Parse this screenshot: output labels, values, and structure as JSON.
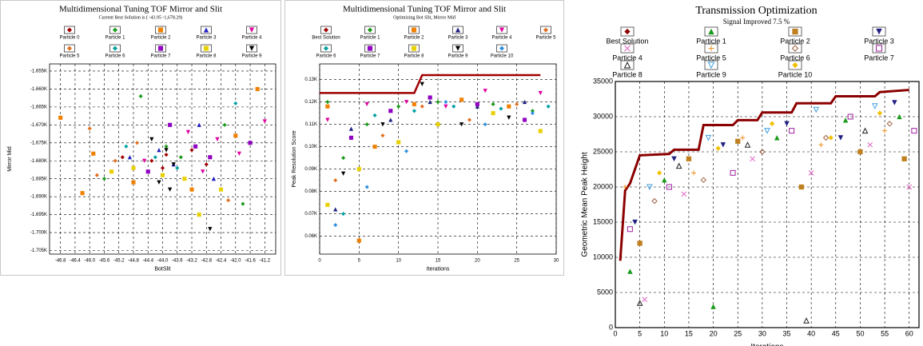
{
  "chart_data": [
    {
      "type": "scatter",
      "title": "Multidimensional Tuning TOF Mirror and Slit",
      "subtitle": "Current Best Solution is ( -43.95 -1,678.29)",
      "x_label": "BotSlit",
      "y_label": "Mirror Mid",
      "xlim": [
        -47.1,
        -40.9
      ],
      "xticks": [
        -46.8,
        -46.4,
        {
          "value": -46,
          "label": "-46.0"
        },
        -45.6,
        -45.2,
        -44.8,
        -44.4,
        {
          "value": -44,
          "label": "-44.0"
        },
        -43.6,
        -43.2,
        -42.8,
        -42.4,
        {
          "value": -42,
          "label": "-42.0"
        },
        -41.6,
        -41.2
      ],
      "ylim": [
        -1.706,
        -1.653
      ],
      "yticks": [
        {
          "value": -1.655,
          "label": "-1.655K"
        },
        {
          "value": -1.66,
          "label": "-1.660K"
        },
        {
          "value": -1.665,
          "label": "-1.665K"
        },
        {
          "value": -1.67,
          "label": "-1.670K"
        },
        {
          "value": -1.675,
          "label": "-1.675K"
        },
        {
          "value": -1.68,
          "label": "-1.680K"
        },
        {
          "value": -1.685,
          "label": "-1.685K"
        },
        {
          "value": -1.69,
          "label": "-1.690K"
        },
        {
          "value": -1.695,
          "label": "-1.695K"
        },
        {
          "value": -1.7,
          "label": "-1.700K"
        },
        {
          "value": -1.705,
          "label": "-1.705K"
        }
      ],
      "grid": true,
      "series": [
        {
          "name": "Particle 0",
          "color": "#a00000",
          "marker": "diamond",
          "filled": true,
          "x": [
            -43.9,
            -44.3,
            -43.2,
            -45.1,
            -42.8,
            -44.0
          ],
          "values": [
            -1.6783,
            -1.68,
            -1.677,
            -1.679,
            -1.681,
            -1.682
          ]
        },
        {
          "name": "Particle 1",
          "color": "#1a9a1a",
          "marker": "diamond",
          "filled": true,
          "x": [
            -44.6,
            -43.5,
            -42.3,
            -45.6,
            -43.9,
            -41.8
          ],
          "values": [
            -1.662,
            -1.679,
            -1.67,
            -1.685,
            -1.676,
            -1.692
          ]
        },
        {
          "name": "Particle 2",
          "color": "#f08000",
          "marker": "square",
          "filled": true,
          "x": [
            -46.8,
            -45.9,
            -44.8,
            -43.2,
            -42.0,
            -46.2,
            -41.4
          ],
          "values": [
            -1.668,
            -1.678,
            -1.686,
            -1.688,
            -1.673,
            -1.689,
            -1.66
          ]
        },
        {
          "name": "Particle 3",
          "color": "#2020c0",
          "marker": "triangle",
          "filled": true,
          "x": [
            -43.7,
            -44.1,
            -42.6,
            -43.0,
            -44.9
          ],
          "values": [
            -1.681,
            -1.677,
            -1.685,
            -1.67,
            -1.679
          ]
        },
        {
          "name": "Particle 4",
          "color": "#e000a0",
          "marker": "down-triangle",
          "filled": true,
          "x": [
            -42.5,
            -43.3,
            -41.9,
            -42.9,
            -44.5,
            -41.2
          ],
          "values": [
            -1.674,
            -1.672,
            -1.678,
            -1.683,
            -1.68,
            -1.669
          ]
        },
        {
          "name": "Particle 5",
          "color": "#e07020",
          "marker": "diamond",
          "filled": true,
          "x": [
            -45.3,
            -44.7,
            -46.0,
            -42.2,
            -45.8
          ],
          "values": [
            -1.68,
            -1.675,
            -1.671,
            -1.691,
            -1.684
          ]
        },
        {
          "name": "Particle 6",
          "color": "#00a0a0",
          "marker": "diamond",
          "filled": true,
          "x": [
            -44.2,
            -43.6,
            -42.0,
            -45.0
          ],
          "values": [
            -1.679,
            -1.682,
            -1.664,
            -1.676
          ]
        },
        {
          "name": "Particle 7",
          "color": "#9000c0",
          "marker": "square",
          "filled": true,
          "x": [
            -43.1,
            -42.7,
            -44.4,
            -43.8,
            -41.6
          ],
          "values": [
            -1.676,
            -1.679,
            -1.683,
            -1.67,
            -1.675
          ]
        },
        {
          "name": "Particle 8",
          "color": "#e8d000",
          "marker": "square",
          "filled": true,
          "x": [
            -44.0,
            -43.4,
            -44.8,
            -42.4,
            -43.0,
            -45.4
          ],
          "values": [
            -1.684,
            -1.685,
            -1.682,
            -1.688,
            -1.695,
            -1.683
          ]
        },
        {
          "name": "Particle 9",
          "color": "#000000",
          "marker": "down-triangle",
          "filled": true,
          "x": [
            -43.9,
            -44.1,
            -43.7,
            -44.3,
            -42.7,
            -43.8
          ],
          "values": [
            -1.677,
            -1.686,
            -1.681,
            -1.674,
            -1.699,
            -1.688
          ]
        }
      ]
    },
    {
      "type": "scatter",
      "title": "Multidimensional Tuning TOF Mirror and Slit",
      "subtitle": "Optimizing Bot Slit, Mirror Mid",
      "x_label": "Iterations",
      "y_label": "Peak Resolution Score",
      "xlim": [
        0,
        30
      ],
      "xticks": [
        0,
        5,
        10,
        15,
        20,
        25,
        30
      ],
      "ylim": [
        0.052,
        0.137
      ],
      "yticks": [
        {
          "value": 0.06,
          "label": "0.06K"
        },
        {
          "value": 0.07,
          "label": "0.07K"
        },
        {
          "value": 0.08,
          "label": "0.08K"
        },
        {
          "value": 0.09,
          "label": "0.09K"
        },
        {
          "value": 0.1,
          "label": "0.10K"
        },
        {
          "value": 0.11,
          "label": "0.11K"
        },
        {
          "value": 0.12,
          "label": "0.12K"
        },
        {
          "value": 0.13,
          "label": "0.13K"
        }
      ],
      "grid": true,
      "series": [
        {
          "name": "Best Solution",
          "color": "#a00000",
          "marker": "diamond",
          "filled": true,
          "line": true,
          "x": [
            0,
            12,
            13,
            28
          ],
          "values": [
            0.124,
            0.124,
            0.132,
            0.132
          ]
        },
        {
          "name": "Particle 1",
          "color": "#1a9a1a",
          "marker": "diamond",
          "filled": true,
          "x": [
            1,
            3,
            6,
            10,
            15,
            22,
            27
          ],
          "values": [
            0.12,
            0.095,
            0.11,
            0.118,
            0.12,
            0.119,
            0.116
          ]
        },
        {
          "name": "Particle 2",
          "color": "#f08000",
          "marker": "square",
          "filled": true,
          "x": [
            1,
            5,
            7,
            12,
            18,
            24
          ],
          "values": [
            0.118,
            0.058,
            0.1,
            0.119,
            0.121,
            0.118
          ]
        },
        {
          "name": "Particle 3",
          "color": "#202080",
          "marker": "triangle",
          "filled": true,
          "x": [
            2,
            4,
            9,
            14,
            20,
            26
          ],
          "values": [
            0.072,
            0.108,
            0.112,
            0.12,
            0.118,
            0.12
          ]
        },
        {
          "name": "Particle 4",
          "color": "#e000a0",
          "marker": "down-triangle",
          "filled": true,
          "x": [
            1,
            6,
            11,
            16,
            21,
            28
          ],
          "values": [
            0.112,
            0.119,
            0.12,
            0.118,
            0.125,
            0.124
          ]
        },
        {
          "name": "Particle 5",
          "color": "#e07020",
          "marker": "diamond",
          "filled": true,
          "x": [
            2,
            8,
            13,
            19,
            25
          ],
          "values": [
            0.085,
            0.105,
            0.118,
            0.112,
            0.119
          ]
        },
        {
          "name": "Particle 6",
          "color": "#00a0a0",
          "marker": "diamond",
          "filled": true,
          "x": [
            3,
            7,
            12,
            17,
            23,
            29
          ],
          "values": [
            0.07,
            0.114,
            0.116,
            0.118,
            0.117,
            0.118
          ]
        },
        {
          "name": "Particle 7",
          "color": "#9000c0",
          "marker": "square",
          "filled": true,
          "x": [
            4,
            9,
            14,
            20,
            26
          ],
          "values": [
            0.104,
            0.116,
            0.122,
            0.119,
            0.112
          ]
        },
        {
          "name": "Particle 8",
          "color": "#e8d000",
          "marker": "square",
          "filled": true,
          "x": [
            1,
            5,
            10,
            15,
            22,
            28
          ],
          "values": [
            0.074,
            0.09,
            0.102,
            0.11,
            0.115,
            0.107
          ]
        },
        {
          "name": "Particle 9",
          "color": "#000000",
          "marker": "down-triangle",
          "filled": true,
          "x": [
            3,
            8,
            13,
            18,
            24
          ],
          "values": [
            0.088,
            0.11,
            0.128,
            0.11,
            0.113
          ]
        },
        {
          "name": "Particle 10",
          "color": "#3090e0",
          "marker": "diamond",
          "filled": true,
          "x": [
            2,
            6,
            11,
            16,
            21,
            27
          ],
          "values": [
            0.065,
            0.082,
            0.098,
            0.12,
            0.11,
            0.115
          ]
        }
      ]
    },
    {
      "type": "scatter",
      "title": "Transmission Optimization",
      "subtitle": "Signal Improved 7.5 %",
      "x_label": "Iterations",
      "y_label": "Geometric Mean Peak Height",
      "xlim": [
        0,
        62
      ],
      "xticks": [
        0,
        5,
        10,
        15,
        20,
        25,
        30,
        35,
        40,
        45,
        50,
        55,
        60
      ],
      "ylim": [
        0,
        35000
      ],
      "yticks": [
        0,
        5000,
        10000,
        15000,
        20000,
        25000,
        30000,
        35000
      ],
      "grid": true,
      "series": [
        {
          "name": "Best Solution",
          "color": "#8b0000",
          "marker": "diamond",
          "filled": true,
          "line": true,
          "x": [
            1,
            2,
            3,
            4,
            5,
            11,
            12,
            17,
            18,
            24,
            25,
            29,
            30,
            36,
            37,
            44,
            45,
            53,
            54,
            60
          ],
          "values": [
            9500,
            19500,
            20500,
            22500,
            24500,
            24700,
            25300,
            25300,
            28800,
            28800,
            29500,
            29500,
            30600,
            30600,
            31900,
            31900,
            32900,
            32900,
            33500,
            33800
          ]
        },
        {
          "name": "Particle 1",
          "color": "#1a9a1a",
          "marker": "triangle",
          "filled": true,
          "x": [
            3,
            10,
            20,
            33,
            47,
            58
          ],
          "values": [
            8000,
            21000,
            3000,
            27000,
            29500,
            30000
          ]
        },
        {
          "name": "Particle 2",
          "color": "#c08020",
          "marker": "square",
          "filled": true,
          "x": [
            5,
            15,
            25,
            38,
            50,
            59
          ],
          "values": [
            12000,
            24000,
            26500,
            20000,
            25000,
            24000
          ]
        },
        {
          "name": "Particle 3",
          "color": "#202080",
          "marker": "down-triangle",
          "filled": true,
          "x": [
            4,
            12,
            22,
            35,
            46,
            57
          ],
          "values": [
            15000,
            24000,
            26000,
            29000,
            27000,
            32000
          ]
        },
        {
          "name": "Particle 4",
          "color": "#e060c0",
          "marker": "x",
          "filled": false,
          "x": [
            6,
            14,
            28,
            40,
            52,
            60
          ],
          "values": [
            4000,
            19000,
            24000,
            22000,
            26000,
            20000
          ]
        },
        {
          "name": "Particle 5",
          "color": "#f09020",
          "marker": "plus",
          "filled": false,
          "x": [
            2,
            16,
            26,
            42,
            55
          ],
          "values": [
            20000,
            22000,
            27000,
            26000,
            28000
          ]
        },
        {
          "name": "Particle 6",
          "color": "#a06040",
          "marker": "diamond",
          "filled": false,
          "x": [
            8,
            18,
            30,
            43,
            56
          ],
          "values": [
            18000,
            21000,
            25000,
            27000,
            29000
          ]
        },
        {
          "name": "Particle 7",
          "color": "#a020a0",
          "marker": "square",
          "filled": false,
          "x": [
            3,
            11,
            24,
            36,
            48,
            61
          ],
          "values": [
            14000,
            20000,
            22000,
            28000,
            30000,
            28000
          ]
        },
        {
          "name": "Particle 8",
          "color": "#202020",
          "marker": "triangle",
          "filled": false,
          "x": [
            5,
            13,
            27,
            39,
            51
          ],
          "values": [
            3500,
            23000,
            26000,
            1000,
            28000
          ]
        },
        {
          "name": "Particle 9",
          "color": "#40a0e0",
          "marker": "down-triangle",
          "filled": false,
          "x": [
            7,
            19,
            31,
            41,
            53
          ],
          "values": [
            20000,
            27000,
            28000,
            31000,
            31500
          ]
        },
        {
          "name": "Particle 10",
          "color": "#f0c000",
          "marker": "diamond",
          "filled": true,
          "x": [
            9,
            21,
            32,
            44,
            54
          ],
          "values": [
            22000,
            25500,
            29000,
            27000,
            30500
          ]
        }
      ]
    }
  ]
}
